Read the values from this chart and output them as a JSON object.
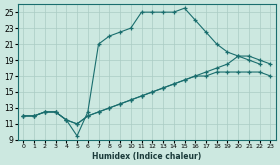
{
  "xlabel": "Humidex (Indice chaleur)",
  "bg_color": "#cce8e0",
  "grid_color": "#aaccc4",
  "line_color": "#1a6e6e",
  "xlim": [
    -0.5,
    23.5
  ],
  "ylim": [
    9,
    26
  ],
  "xticks": [
    0,
    1,
    2,
    3,
    4,
    5,
    6,
    7,
    8,
    9,
    10,
    11,
    12,
    13,
    14,
    15,
    16,
    17,
    18,
    19,
    20,
    21,
    22,
    23
  ],
  "yticks": [
    9,
    11,
    13,
    15,
    17,
    19,
    21,
    23,
    25
  ],
  "line1_x": [
    0,
    1,
    2,
    3,
    4,
    5,
    6,
    7,
    8,
    9,
    10,
    11,
    12,
    13,
    14,
    15,
    16,
    17,
    18,
    19,
    20,
    21,
    22
  ],
  "line1_y": [
    12,
    12,
    12.5,
    12.5,
    11.5,
    9.5,
    12.5,
    21,
    22,
    22.5,
    23,
    25,
    25,
    25,
    25,
    25.5,
    24,
    22.5,
    21,
    20,
    19.5,
    19,
    18.5
  ],
  "line2_x": [
    0,
    1,
    2,
    3,
    4,
    5,
    6,
    7,
    8,
    9,
    10,
    11,
    12,
    13,
    14,
    15,
    16,
    17,
    18,
    19,
    20,
    21,
    22,
    23
  ],
  "line2_y": [
    12,
    12,
    12.5,
    12.5,
    11.5,
    11,
    12,
    12.5,
    13,
    13.5,
    14,
    14.5,
    15,
    15.5,
    16,
    16.5,
    17,
    17.5,
    18,
    18.5,
    19.5,
    19.5,
    19,
    18.5
  ],
  "line3_x": [
    0,
    1,
    2,
    3,
    4,
    5,
    6,
    7,
    8,
    9,
    10,
    11,
    12,
    13,
    14,
    15,
    16,
    17,
    18,
    19,
    20,
    21,
    22,
    23
  ],
  "line3_y": [
    12,
    12,
    12.5,
    12.5,
    11.5,
    11,
    12,
    12.5,
    13,
    13.5,
    14,
    14.5,
    15,
    15.5,
    16,
    16.5,
    17,
    17,
    17.5,
    17.5,
    17.5,
    17.5,
    17.5,
    17
  ]
}
